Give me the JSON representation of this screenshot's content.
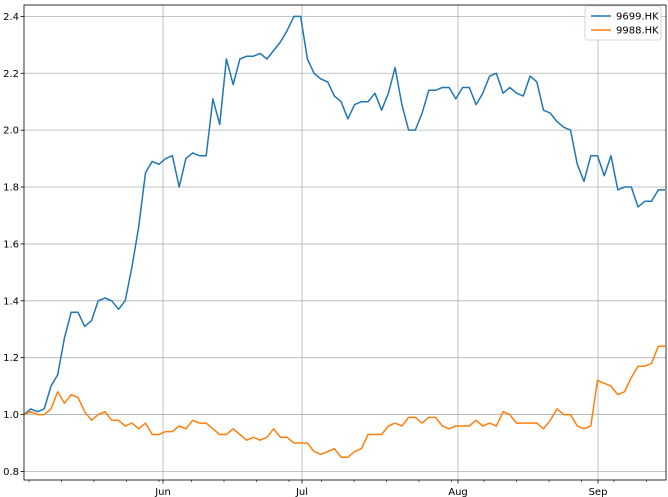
{
  "chart_data": {
    "type": "line",
    "title": "",
    "xlabel": "",
    "ylabel": "",
    "grid": true,
    "legend_position": "top-right",
    "x_tick_labels": [
      "Jun",
      "Jul",
      "Aug",
      "Sep"
    ],
    "y_ticks": [
      0.8,
      1.0,
      1.2,
      1.4,
      1.6,
      1.8,
      2.0,
      2.2,
      2.4
    ],
    "y_tick_labels": [
      "0.8",
      "1.0",
      "1.2",
      "1.4",
      "1.6",
      "1.8",
      "2.0",
      "2.2",
      "2.4"
    ],
    "ylim": [
      0.77,
      2.44
    ],
    "series": [
      {
        "name": "9699.HK",
        "color": "#1f77b4",
        "values": [
          1.0,
          1.02,
          1.01,
          1.02,
          1.1,
          1.14,
          1.27,
          1.36,
          1.36,
          1.31,
          1.33,
          1.4,
          1.41,
          1.4,
          1.37,
          1.4,
          1.52,
          1.66,
          1.85,
          1.89,
          1.88,
          1.9,
          1.91,
          1.8,
          1.9,
          1.92,
          1.91,
          1.91,
          2.11,
          2.02,
          2.25,
          2.16,
          2.25,
          2.26,
          2.26,
          2.27,
          2.25,
          2.28,
          2.31,
          2.35,
          2.4,
          2.4,
          2.25,
          2.2,
          2.18,
          2.17,
          2.12,
          2.1,
          2.04,
          2.09,
          2.1,
          2.1,
          2.13,
          2.07,
          2.13,
          2.22,
          2.09,
          2.0,
          2.0,
          2.06,
          2.14,
          2.14,
          2.15,
          2.15,
          2.11,
          2.15,
          2.15,
          2.09,
          2.13,
          2.19,
          2.2,
          2.13,
          2.15,
          2.13,
          2.12,
          2.19,
          2.17,
          2.07,
          2.06,
          2.03,
          2.01,
          2.0,
          1.88,
          1.82,
          1.91,
          1.91,
          1.84,
          1.91,
          1.79,
          1.8,
          1.8,
          1.73,
          1.75,
          1.75,
          1.79,
          1.79
        ]
      },
      {
        "name": "9988.HK",
        "color": "#ff7f0e",
        "values": [
          1.0,
          1.01,
          1.0,
          1.0,
          1.02,
          1.08,
          1.04,
          1.07,
          1.06,
          1.01,
          0.98,
          1.0,
          1.01,
          0.98,
          0.98,
          0.96,
          0.97,
          0.95,
          0.97,
          0.93,
          0.93,
          0.94,
          0.94,
          0.96,
          0.95,
          0.98,
          0.97,
          0.97,
          0.95,
          0.93,
          0.93,
          0.95,
          0.93,
          0.91,
          0.92,
          0.91,
          0.92,
          0.95,
          0.92,
          0.92,
          0.9,
          0.9,
          0.9,
          0.87,
          0.86,
          0.87,
          0.88,
          0.85,
          0.85,
          0.87,
          0.88,
          0.93,
          0.93,
          0.93,
          0.96,
          0.97,
          0.96,
          0.99,
          0.99,
          0.97,
          0.99,
          0.99,
          0.96,
          0.95,
          0.96,
          0.96,
          0.96,
          0.98,
          0.96,
          0.97,
          0.96,
          1.01,
          1.0,
          0.97,
          0.97,
          0.97,
          0.97,
          0.95,
          0.98,
          1.02,
          1.0,
          1.0,
          0.96,
          0.95,
          0.96,
          1.12,
          1.11,
          1.1,
          1.07,
          1.08,
          1.13,
          1.17,
          1.17,
          1.18,
          1.24,
          1.24
        ]
      }
    ]
  }
}
